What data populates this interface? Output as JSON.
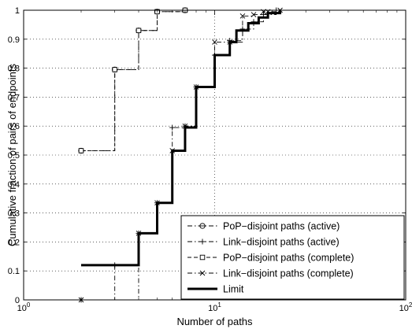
{
  "chart_data": {
    "type": "line",
    "xlabel": "Number of paths",
    "ylabel": "Cumulative fraction of pairs of endpoints",
    "xscale": "log",
    "xlim": [
      1,
      100
    ],
    "ylim": [
      0,
      1
    ],
    "grid": true,
    "x_ticks": [
      {
        "value": 1,
        "base": "10",
        "exp": "0"
      },
      {
        "value": 10,
        "base": "10",
        "exp": "1"
      },
      {
        "value": 100,
        "base": "10",
        "exp": "2"
      }
    ],
    "y_ticks": [
      {
        "value": 0,
        "label": "0"
      },
      {
        "value": 0.1,
        "label": "0.1"
      },
      {
        "value": 0.2,
        "label": "0.2"
      },
      {
        "value": 0.3,
        "label": "0.3"
      },
      {
        "value": 0.4,
        "label": "0.4"
      },
      {
        "value": 0.5,
        "label": "0.5"
      },
      {
        "value": 0.6,
        "label": "0.6"
      },
      {
        "value": 0.7,
        "label": "0.7"
      },
      {
        "value": 0.8,
        "label": "0.8"
      },
      {
        "value": 0.9,
        "label": "0.9"
      },
      {
        "value": 1,
        "label": "1"
      }
    ],
    "legend_position": "bottom-right",
    "series": [
      {
        "name": "PoP−disjoint paths (active)",
        "style": "dashdot",
        "marker": "circle-plus",
        "color": "#000000",
        "x": [
          2,
          3,
          4,
          5,
          7
        ],
        "y": [
          0.515,
          0.795,
          0.93,
          0.995,
          1.0
        ]
      },
      {
        "name": "Link−disjoint paths (active)",
        "style": "dashdot",
        "marker": "plus",
        "color": "#000000",
        "x": [
          2,
          3,
          4,
          5,
          6,
          7,
          8,
          10,
          12,
          14,
          16,
          18,
          21
        ],
        "y": [
          0.0,
          0.12,
          0.23,
          0.335,
          0.595,
          0.6,
          0.735,
          0.845,
          0.895,
          0.935,
          0.96,
          0.985,
          1.0
        ]
      },
      {
        "name": "PoP−disjoint paths (complete)",
        "style": "dashed",
        "marker": "square",
        "color": "#000000",
        "x": [
          2,
          3,
          4,
          5,
          7
        ],
        "y": [
          0.515,
          0.795,
          0.93,
          0.995,
          1.0
        ]
      },
      {
        "name": "Link−disjoint paths (complete)",
        "style": "dashdot",
        "marker": "x",
        "color": "#000000",
        "x": [
          2,
          4,
          5,
          6,
          7,
          8,
          10,
          12,
          14,
          16,
          18,
          19,
          22
        ],
        "y": [
          0.0,
          0.23,
          0.335,
          0.515,
          0.6,
          0.735,
          0.89,
          0.89,
          0.98,
          0.985,
          0.995,
          0.995,
          1.0
        ]
      },
      {
        "name": "Limit",
        "style": "solid-thick",
        "marker": "none",
        "color": "#000000",
        "x": [
          2,
          4,
          5,
          6,
          7,
          8,
          10,
          12,
          13,
          15,
          17,
          19,
          22
        ],
        "y": [
          0.12,
          0.23,
          0.335,
          0.515,
          0.595,
          0.735,
          0.845,
          0.89,
          0.93,
          0.955,
          0.975,
          0.99,
          1.0
        ]
      }
    ]
  }
}
